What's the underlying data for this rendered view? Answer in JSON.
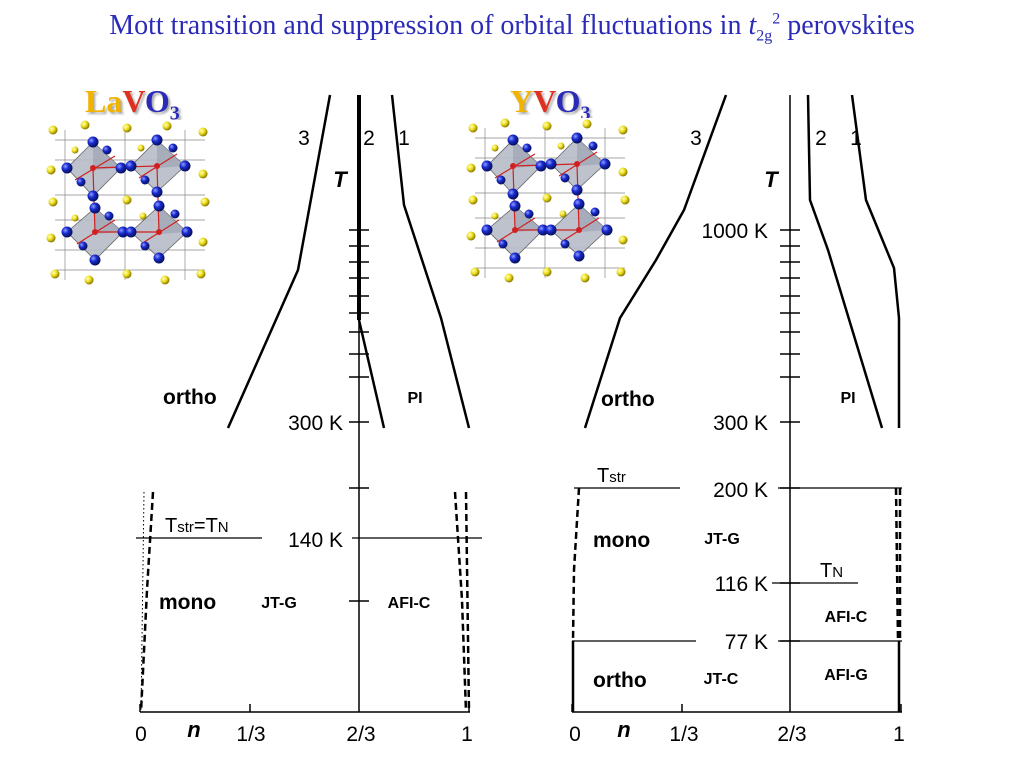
{
  "title": {
    "prefix": "Mott transition and suppression of orbital fluctuations in ",
    "t": "t",
    "sub": "2g",
    "sup": "2",
    "suffix": " perovskites"
  },
  "colors": {
    "title": "#2b2bb8",
    "la_color": "#f0b400",
    "v_color": "#e03020",
    "o_color": "#2b2bb8",
    "y_color": "#f0b400"
  },
  "left_panel": {
    "compound": {
      "part1": "La",
      "part2": "V",
      "part3": "O",
      "sub": "3"
    },
    "axis_title": "T",
    "n_label": "n",
    "n_ticks": [
      "0",
      "1/3",
      "2/3",
      "1"
    ],
    "temp_labels": {
      "t300": "300 K",
      "t140": "140 K"
    },
    "curve_labels": {
      "c3": "3",
      "c2": "2",
      "c1": "1"
    },
    "phases": {
      "ortho": "ortho",
      "pi": "PI",
      "mono": "mono",
      "jtg": "JT-G",
      "afic": "AFI-C"
    },
    "transition": {
      "t": "T",
      "sub1": "str",
      "eq": "=T",
      "sub2": "N"
    }
  },
  "right_panel": {
    "compound": {
      "part1": "Y",
      "part2": "V",
      "part3": "O",
      "sub": "3"
    },
    "axis_title": "T",
    "n_label": "n",
    "n_ticks": [
      "0",
      "1/3",
      "2/3",
      "1"
    ],
    "temp_labels": {
      "t1000": "1000 K",
      "t300": "300 K",
      "t200": "200 K",
      "t116": "116 K",
      "t77": "77 K"
    },
    "curve_labels": {
      "c3": "3",
      "c2": "2",
      "c1": "1"
    },
    "phases": {
      "ortho_top": "ortho",
      "pi": "PI",
      "mono": "mono",
      "jtg": "JT-G",
      "afic": "AFI-C",
      "ortho_bottom": "ortho",
      "jtc": "JT-C",
      "afig": "AFI-G"
    },
    "tstr": {
      "t": "T",
      "sub": "str"
    },
    "tn": {
      "t": "T",
      "sub": "N"
    }
  }
}
